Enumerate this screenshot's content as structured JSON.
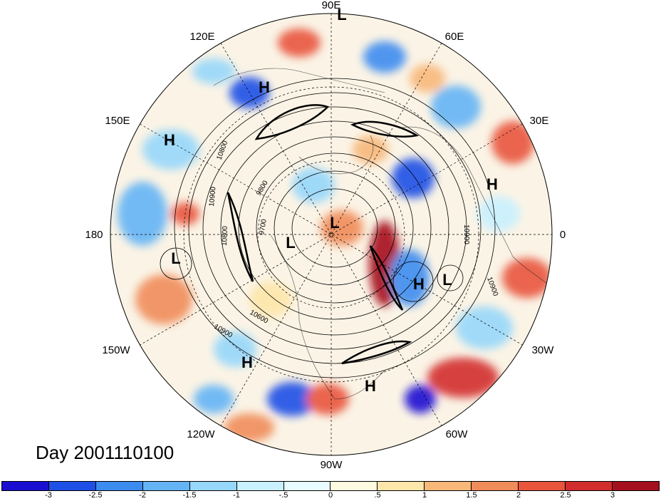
{
  "map": {
    "title": "Day 2001110100",
    "projection": "north-polar-stereographic",
    "longitude_labels": [
      "90E",
      "60E",
      "30E",
      "0",
      "30W",
      "60W",
      "90W",
      "120W",
      "150W",
      "180",
      "150E",
      "120E"
    ],
    "contour_labels": [
      "10800",
      "10900",
      "10900",
      "10800",
      "9700",
      "9800",
      "10600",
      "10900",
      "10900"
    ],
    "pressure_systems": [
      {
        "type": "H"
      },
      {
        "type": "H"
      },
      {
        "type": "H"
      },
      {
        "type": "H"
      },
      {
        "type": "H"
      },
      {
        "type": "H"
      },
      {
        "type": "L"
      },
      {
        "type": "L"
      },
      {
        "type": "L"
      },
      {
        "type": "L"
      },
      {
        "type": "L"
      }
    ]
  },
  "colorbar": {
    "colors": [
      "#1a0fd1",
      "#1e50e6",
      "#3c8cf0",
      "#64b4f5",
      "#96d7fa",
      "#c8f0ff",
      "#e8fbff",
      "#fffbe0",
      "#fde6aa",
      "#f7b87a",
      "#f08c5a",
      "#e8553c",
      "#d22d2d",
      "#a5101e"
    ],
    "tick_labels": [
      "-3",
      "-2.5",
      "-2",
      "-1.5",
      "-1",
      "-.5",
      "0",
      ".5",
      "1",
      "1.5",
      "2",
      "2.5",
      "3"
    ]
  }
}
